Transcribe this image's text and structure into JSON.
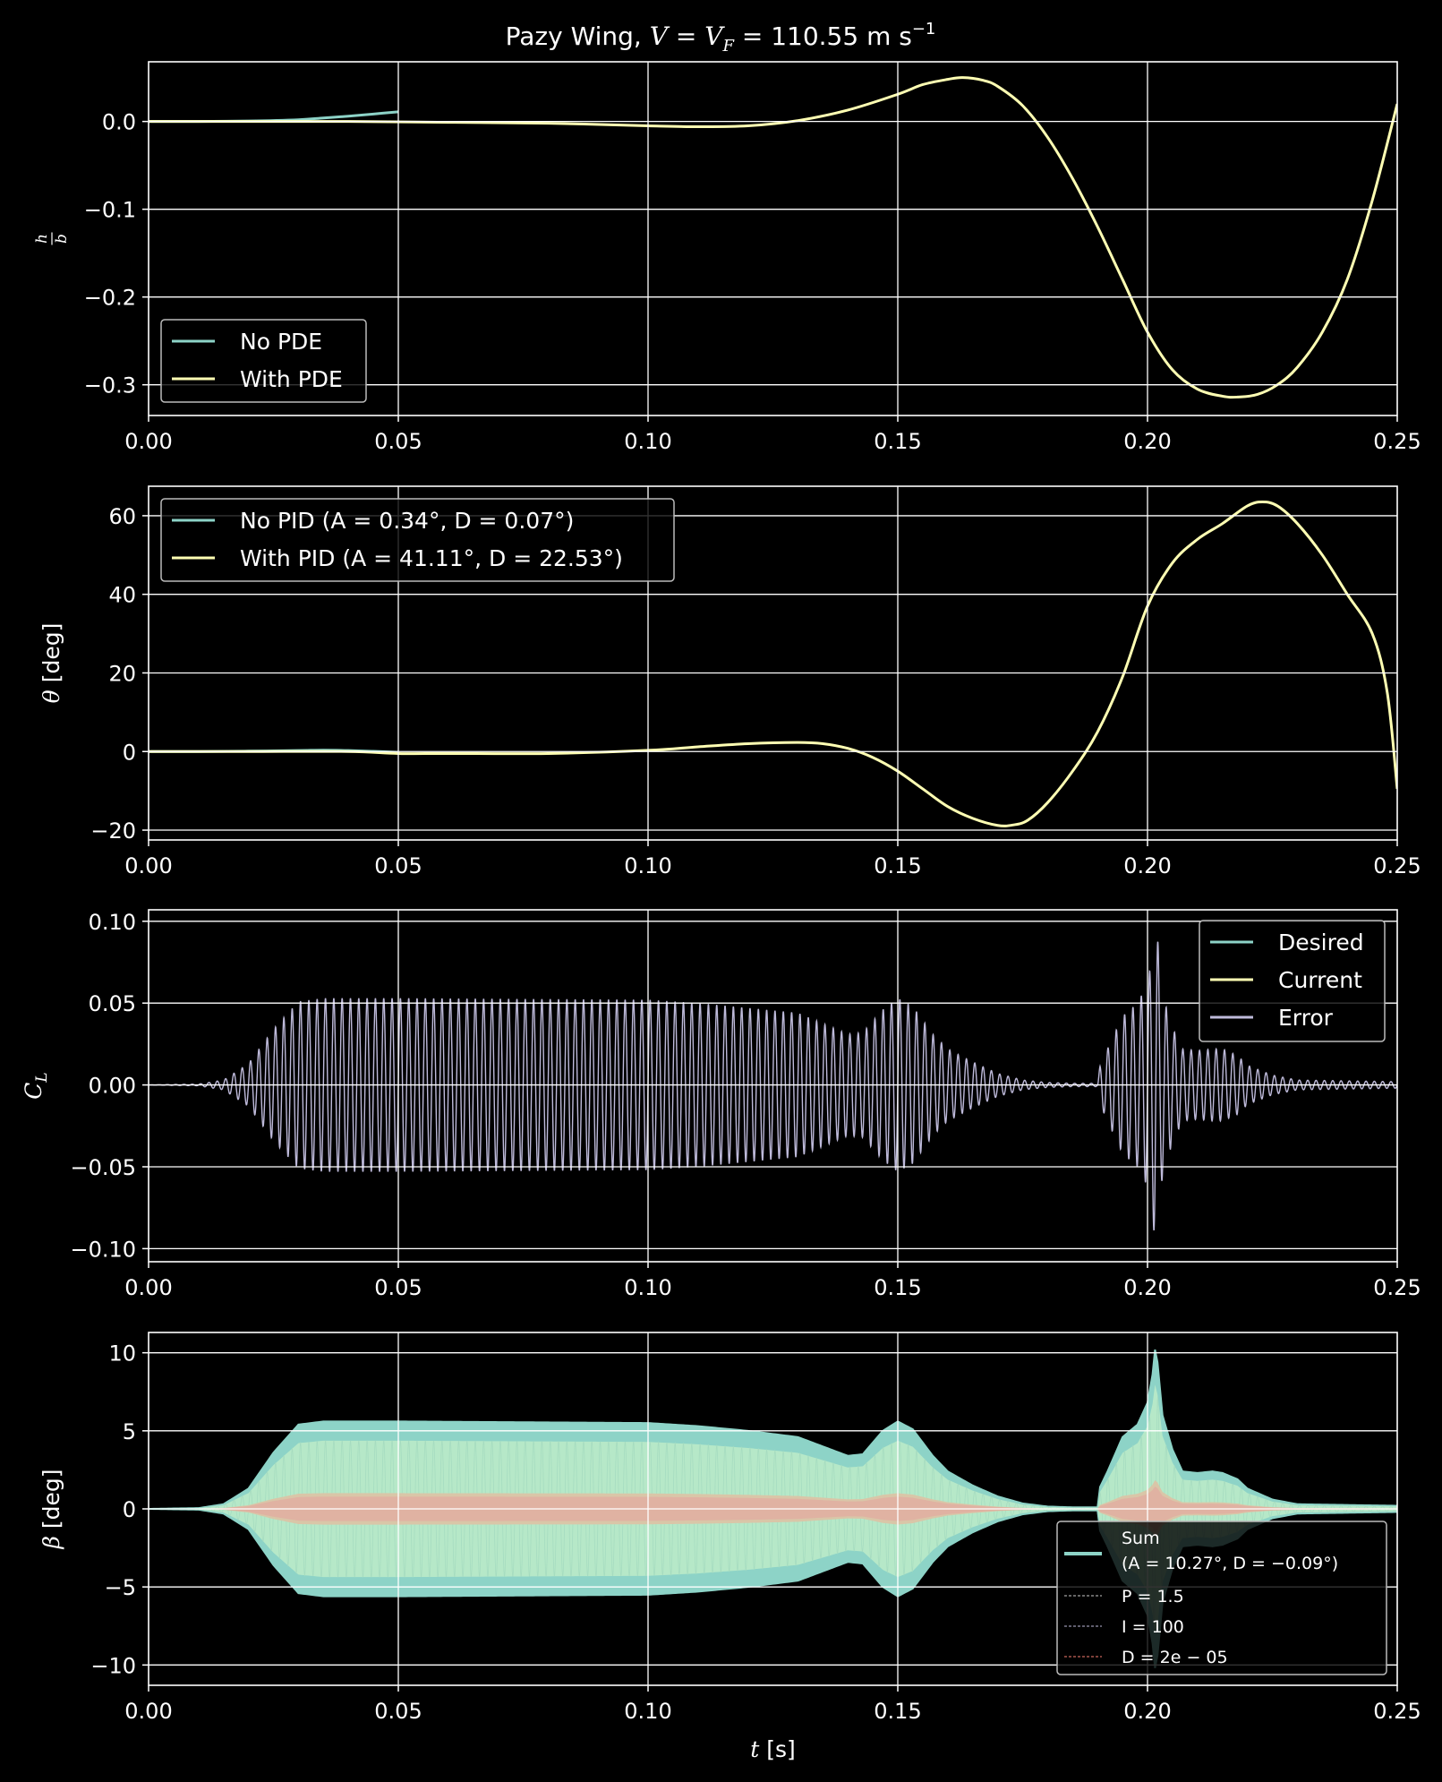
{
  "figure": {
    "title_main": "Pazy Wing, ",
    "title_math": "V = V",
    "title_sub": "F",
    "title_value": " = 110.55 m s",
    "title_sup": "−1"
  },
  "chart_data": [
    {
      "type": "line",
      "ylabel": "h/b",
      "xlim": [
        0,
        0.25
      ],
      "ylim": [
        -0.335,
        0.068
      ],
      "xticks": [
        "0.00",
        "0.05",
        "0.10",
        "0.15",
        "0.20",
        "0.25"
      ],
      "yticks": [
        "0.0",
        "−0.1",
        "−0.2",
        "−0.3"
      ],
      "ytick_values": [
        0.0,
        -0.1,
        -0.2,
        -0.3
      ],
      "legend": "upper-left",
      "series": [
        {
          "name": "No PDE",
          "color": "#8dd3c7",
          "x": [
            0,
            0.01,
            0.02,
            0.03,
            0.035,
            0.04,
            0.045,
            0.05
          ],
          "y": [
            0,
            0,
            0.0005,
            0.002,
            0.004,
            0.006,
            0.0085,
            0.011
          ]
        },
        {
          "name": "With PDE",
          "color": "#ffffb3",
          "x": [
            0,
            0.02,
            0.04,
            0.06,
            0.08,
            0.1,
            0.11,
            0.12,
            0.13,
            0.14,
            0.15,
            0.155,
            0.16,
            0.163,
            0.167,
            0.17,
            0.175,
            0.18,
            0.185,
            0.19,
            0.195,
            0.2,
            0.205,
            0.21,
            0.215,
            0.218,
            0.222,
            0.226,
            0.23,
            0.235,
            0.24,
            0.245,
            0.25
          ],
          "y": [
            0,
            0,
            0,
            -0.001,
            -0.002,
            -0.005,
            -0.006,
            -0.005,
            0.001,
            0.013,
            0.031,
            0.042,
            0.048,
            0.05,
            0.047,
            0.04,
            0.018,
            -0.018,
            -0.065,
            -0.12,
            -0.18,
            -0.24,
            -0.283,
            -0.305,
            -0.313,
            -0.314,
            -0.311,
            -0.3,
            -0.28,
            -0.24,
            -0.18,
            -0.09,
            0.02
          ]
        }
      ]
    },
    {
      "type": "line",
      "ylabel": "θ [deg]",
      "xlim": [
        0,
        0.25
      ],
      "ylim": [
        -22.5,
        67.5
      ],
      "xticks": [
        "0.00",
        "0.05",
        "0.10",
        "0.15",
        "0.20",
        "0.25"
      ],
      "yticks": [
        "60",
        "40",
        "20",
        "0",
        "−20"
      ],
      "ytick_values": [
        60,
        40,
        20,
        0,
        -20
      ],
      "legend": "upper-left",
      "series": [
        {
          "name": "No PID (A = 0.34°, D = 0.07°)",
          "color": "#8dd3c7",
          "x": [
            0,
            0.01,
            0.02,
            0.03,
            0.035,
            0.04,
            0.045,
            0.05
          ],
          "y": [
            0,
            0,
            0.1,
            0.25,
            0.34,
            0.25,
            0.05,
            -0.2
          ]
        },
        {
          "name": "With PID (A = 41.11°, D = 22.53°)",
          "color": "#ffffb3",
          "x": [
            0,
            0.02,
            0.04,
            0.05,
            0.06,
            0.08,
            0.1,
            0.11,
            0.12,
            0.13,
            0.135,
            0.14,
            0.145,
            0.15,
            0.155,
            0.16,
            0.165,
            0.17,
            0.173,
            0.176,
            0.18,
            0.185,
            0.19,
            0.195,
            0.2,
            0.205,
            0.21,
            0.215,
            0.22,
            0.223,
            0.226,
            0.23,
            0.235,
            0.24,
            0.245,
            0.248,
            0.25
          ],
          "y": [
            0,
            0,
            0,
            -0.5,
            -0.5,
            -0.5,
            0.3,
            1.2,
            2,
            2.3,
            2,
            0.8,
            -1.5,
            -5,
            -9.5,
            -14,
            -17,
            -18.8,
            -18.7,
            -17.5,
            -13,
            -5,
            5,
            19,
            37,
            48,
            54,
            58,
            62.5,
            63.5,
            62.5,
            58,
            50,
            40,
            30,
            15,
            -9.5
          ]
        }
      ]
    },
    {
      "type": "line",
      "ylabel": "C_L",
      "xlim": [
        0,
        0.25
      ],
      "ylim": [
        -0.108,
        0.107
      ],
      "xticks": [
        "0.00",
        "0.05",
        "0.10",
        "0.15",
        "0.20",
        "0.25"
      ],
      "yticks": [
        "0.10",
        "0.05",
        "0.00",
        "−0.05",
        "−0.10"
      ],
      "ytick_values": [
        0.1,
        0.05,
        0,
        -0.05,
        -0.1
      ],
      "legend": "upper-right",
      "series": [
        {
          "name": "Desired",
          "color": "#8dd3c7"
        },
        {
          "name": "Current",
          "color": "#ffffb3"
        },
        {
          "name": "Error",
          "color": "#bebada",
          "envelope_t": [
            0,
            0.01,
            0.015,
            0.02,
            0.025,
            0.03,
            0.035,
            0.05,
            0.1,
            0.11,
            0.12,
            0.13,
            0.14,
            0.143,
            0.147,
            0.15,
            0.153,
            0.157,
            0.16,
            0.165,
            0.17,
            0.175,
            0.18,
            0.185,
            0.19,
            0.1905,
            0.192,
            0.195,
            0.198,
            0.2,
            0.201,
            0.2015,
            0.202,
            0.203,
            0.205,
            0.207,
            0.21,
            0.213,
            0.215,
            0.218,
            0.22,
            0.225,
            0.23,
            0.25
          ],
          "envelope_a": [
            0,
            0.0005,
            0.003,
            0.013,
            0.034,
            0.051,
            0.053,
            0.053,
            0.052,
            0.05,
            0.047,
            0.044,
            0.031,
            0.032,
            0.046,
            0.053,
            0.048,
            0.031,
            0.022,
            0.014,
            0.007,
            0.003,
            0.0015,
            0.001,
            0.001,
            0.012,
            0.022,
            0.042,
            0.05,
            0.062,
            0.08,
            0.097,
            0.09,
            0.055,
            0.035,
            0.022,
            0.021,
            0.022,
            0.022,
            0.018,
            0.012,
            0.006,
            0.003,
            0.002
          ],
          "cycles_per_second": 600
        }
      ]
    },
    {
      "type": "line",
      "ylabel": "β [deg]",
      "xlabel": "t [s]",
      "xlim": [
        0,
        0.25
      ],
      "ylim": [
        -11.3,
        11.3
      ],
      "xticks": [
        "0.00",
        "0.05",
        "0.10",
        "0.15",
        "0.20",
        "0.25"
      ],
      "yticks": [
        "10",
        "5",
        "0",
        "−5",
        "−10"
      ],
      "ytick_values": [
        10,
        5,
        0,
        -5,
        -10
      ],
      "legend": "lower-right",
      "series": [
        {
          "name": "Sum",
          "name_line2": "(A = 10.27°, D = −0.09°)",
          "color": "#8dd3c7",
          "envelope_t": [
            0,
            0.01,
            0.015,
            0.02,
            0.025,
            0.03,
            0.035,
            0.05,
            0.1,
            0.11,
            0.12,
            0.13,
            0.14,
            0.143,
            0.147,
            0.15,
            0.153,
            0.157,
            0.16,
            0.165,
            0.17,
            0.175,
            0.18,
            0.185,
            0.19,
            0.1905,
            0.192,
            0.195,
            0.198,
            0.2,
            0.201,
            0.2015,
            0.202,
            0.203,
            0.205,
            0.207,
            0.21,
            0.213,
            0.215,
            0.218,
            0.22,
            0.225,
            0.23,
            0.25
          ],
          "envelope_a": [
            0,
            0.05,
            0.3,
            1.3,
            3.6,
            5.4,
            5.6,
            5.6,
            5.5,
            5.3,
            5,
            4.6,
            3.4,
            3.5,
            5,
            5.6,
            5.1,
            3.4,
            2.4,
            1.5,
            0.8,
            0.35,
            0.15,
            0.1,
            0.1,
            1.4,
            2.4,
            4.6,
            5.4,
            6.8,
            8.6,
            10.2,
            9.4,
            6,
            3.8,
            2.4,
            2.3,
            2.4,
            2.3,
            1.9,
            1.3,
            0.6,
            0.3,
            0.2
          ]
        },
        {
          "name": "P = 1.5",
          "color": "#cccccc",
          "scale": 0.78
        },
        {
          "name": "I = 100",
          "color": "#bebada",
          "scale": 0.18
        },
        {
          "name": "D = 2e − 05",
          "color": "#fb8072",
          "scale": 0.14
        }
      ]
    }
  ]
}
